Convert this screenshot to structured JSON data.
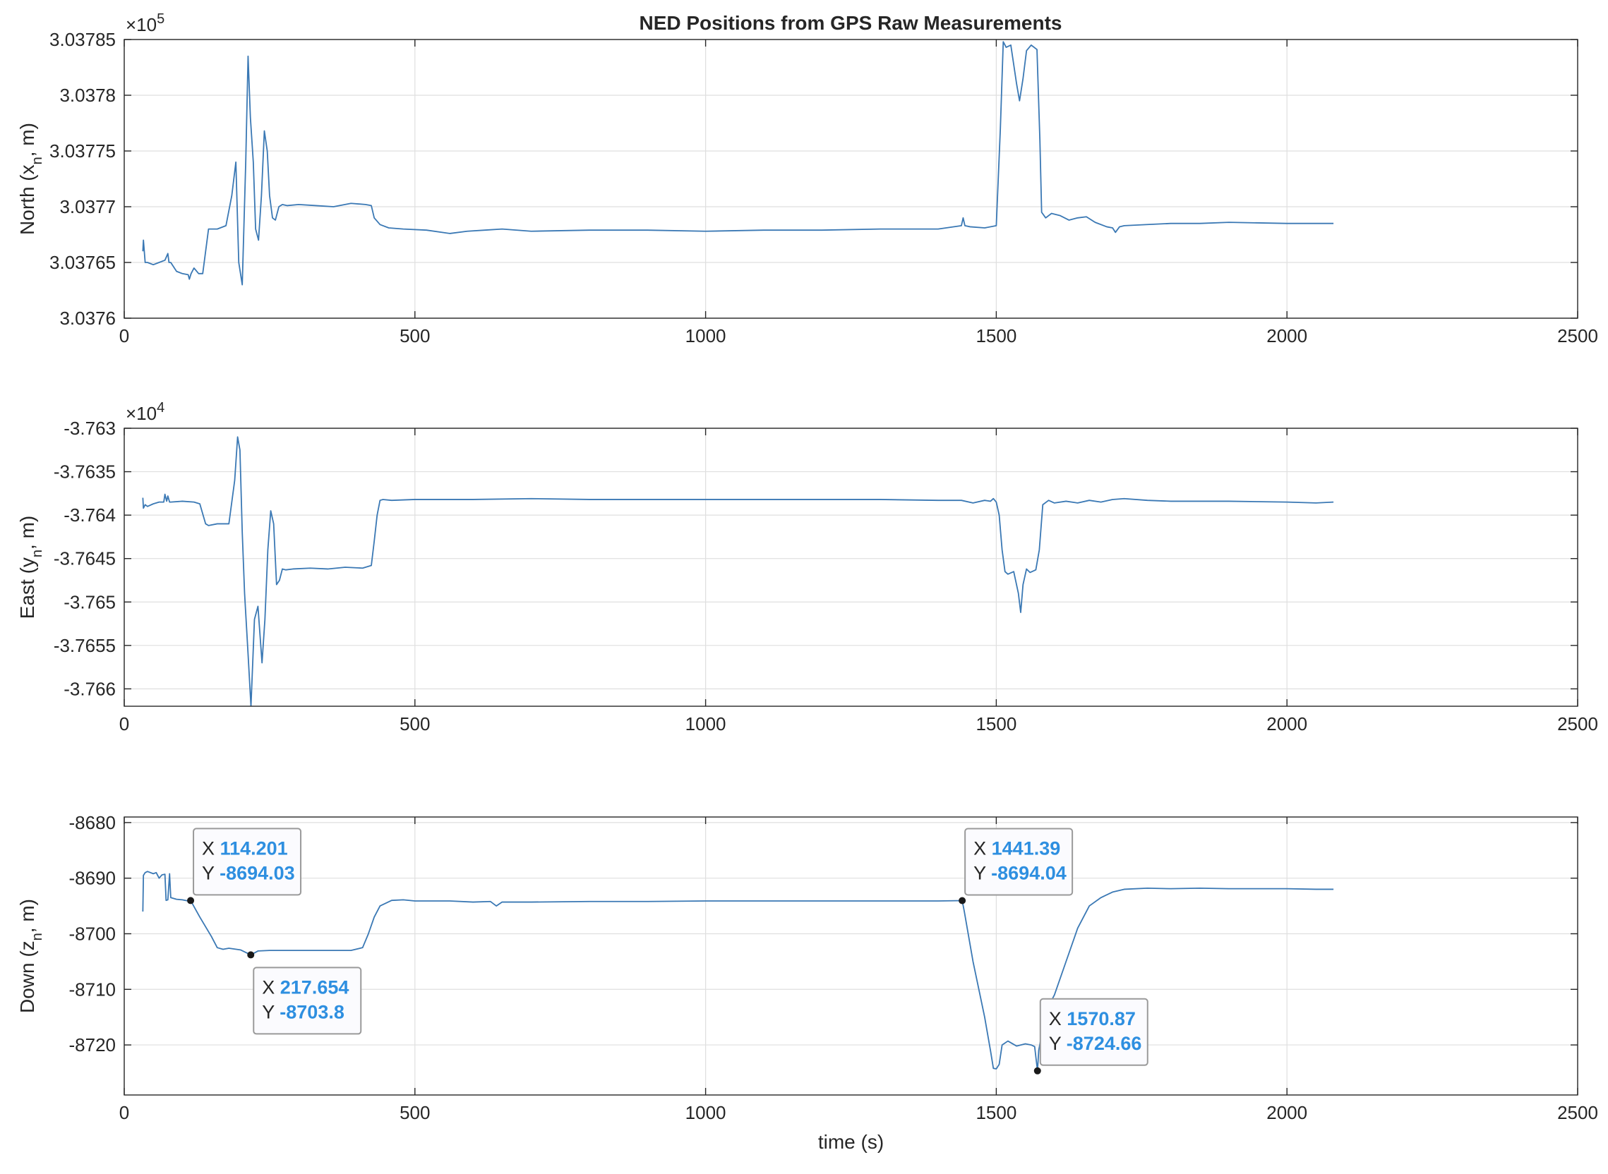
{
  "figure": {
    "title": "NED Positions from GPS Raw Measurements",
    "line_color": "#3A78B4",
    "tip_value_color": "#2E8FE0"
  },
  "chart_data": [
    {
      "type": "line",
      "name": "north",
      "ylabel": "North (x_n, m)",
      "xlabel": "",
      "exponent": "×10^5",
      "exponent_base": "×10",
      "exponent_power": "5",
      "xlim": [
        0,
        2500
      ],
      "ylim": [
        303760,
        303785
      ],
      "xticks": [
        0,
        500,
        1000,
        1500,
        2000,
        2500
      ],
      "yticks": [
        303760,
        303765,
        303770,
        303775,
        303780,
        303785
      ],
      "ytick_labels": [
        "3.0376",
        "3.03765",
        "3.0377",
        "3.03775",
        "3.0378",
        "3.03785"
      ],
      "grid": true,
      "x": [
        32,
        33,
        36,
        40,
        50,
        60,
        70,
        75,
        77,
        80,
        90,
        100,
        110,
        112,
        115,
        120,
        128,
        135,
        145,
        160,
        175,
        185,
        192,
        197,
        203,
        209,
        213,
        217,
        222,
        226,
        231,
        236,
        241,
        246,
        250,
        255,
        260,
        266,
        272,
        280,
        300,
        330,
        360,
        390,
        415,
        425,
        430,
        440,
        455,
        480,
        520,
        560,
        590,
        620,
        650,
        700,
        800,
        900,
        1000,
        1100,
        1200,
        1300,
        1400,
        1440,
        1443,
        1446,
        1455,
        1480,
        1500,
        1507,
        1512,
        1517,
        1525,
        1535,
        1540,
        1546,
        1552,
        1560,
        1570,
        1575,
        1578,
        1585,
        1595,
        1610,
        1625,
        1640,
        1655,
        1670,
        1690,
        1700,
        1705,
        1712,
        1720,
        1760,
        1800,
        1850,
        1900,
        2000,
        2050,
        2080
      ],
      "y": [
        303766,
        303767,
        303765,
        303765,
        303764.8,
        303765,
        303765.2,
        303765.8,
        303765,
        303765,
        303764.2,
        303764,
        303763.9,
        303763.5,
        303764,
        303764.5,
        303764,
        303764,
        303768,
        303768,
        303768.3,
        303771,
        303774,
        303765,
        303763,
        303774,
        303783.5,
        303778,
        303774,
        303768,
        303767,
        303771,
        303776.8,
        303775,
        303771,
        303769,
        303768.8,
        303770,
        303770.2,
        303770.1,
        303770.2,
        303770.1,
        303770,
        303770.3,
        303770.2,
        303770.1,
        303769,
        303768.4,
        303768.1,
        303768,
        303767.9,
        303767.6,
        303767.8,
        303767.9,
        303768,
        303767.8,
        303767.9,
        303767.9,
        303767.8,
        303767.9,
        303767.9,
        303768,
        303768,
        303768.3,
        303769,
        303768.3,
        303768.2,
        303768.1,
        303768.3,
        303777,
        303784.8,
        303784.3,
        303784.5,
        303781,
        303779.5,
        303781.5,
        303784,
        303784.5,
        303784.1,
        303776,
        303769.5,
        303769,
        303769.4,
        303769.2,
        303768.8,
        303769,
        303769.1,
        303768.6,
        303768.2,
        303768.1,
        303767.7,
        303768.2,
        303768.3,
        303768.4,
        303768.5,
        303768.5,
        303768.6,
        303768.5,
        303768.5,
        303768.5
      ]
    },
    {
      "type": "line",
      "name": "east",
      "ylabel": "East (y_n, m)",
      "xlabel": "",
      "exponent": "×10^4",
      "exponent_base": "×10",
      "exponent_power": "4",
      "xlim": [
        0,
        2500
      ],
      "ylim": [
        -37662,
        -37630
      ],
      "xticks": [
        0,
        500,
        1000,
        1500,
        2000,
        2500
      ],
      "yticks": [
        -37660,
        -37655,
        -37650,
        -37645,
        -37640,
        -37635,
        -37630
      ],
      "ytick_labels": [
        "-3.766",
        "-3.7655",
        "-3.765",
        "-3.7645",
        "-3.764",
        "-3.7635",
        "-3.763"
      ],
      "grid": true,
      "x": [
        32,
        33,
        36,
        40,
        50,
        60,
        68,
        70,
        73,
        75,
        78,
        80,
        100,
        120,
        130,
        140,
        145,
        160,
        180,
        190,
        195,
        199,
        203,
        207,
        213,
        218,
        224,
        230,
        237,
        242,
        247,
        252,
        257,
        262,
        267,
        272,
        278,
        290,
        320,
        350,
        380,
        410,
        425,
        430,
        435,
        440,
        445,
        460,
        500,
        600,
        700,
        800,
        900,
        1000,
        1100,
        1200,
        1300,
        1400,
        1440,
        1460,
        1480,
        1490,
        1495,
        1500,
        1505,
        1510,
        1515,
        1520,
        1530,
        1538,
        1542,
        1546,
        1552,
        1558,
        1568,
        1574,
        1580,
        1590,
        1600,
        1620,
        1640,
        1660,
        1680,
        1700,
        1720,
        1760,
        1800,
        1900,
        2000,
        2050,
        2080
      ],
      "y": [
        -37638,
        -37639.2,
        -37638.8,
        -37639,
        -37638.7,
        -37638.5,
        -37638.5,
        -37637.6,
        -37638.4,
        -37637.8,
        -37638.5,
        -37638.5,
        -37638.4,
        -37638.5,
        -37638.7,
        -37641,
        -37641.2,
        -37641,
        -37641,
        -37636,
        -37631,
        -37632.5,
        -37642,
        -37649,
        -37656,
        -37662,
        -37652,
        -37650.5,
        -37657,
        -37652,
        -37644,
        -37639.5,
        -37641,
        -37648,
        -37647.5,
        -37646.2,
        -37646.3,
        -37646.2,
        -37646.1,
        -37646.2,
        -37646,
        -37646.1,
        -37645.8,
        -37643,
        -37640,
        -37638.3,
        -37638.2,
        -37638.3,
        -37638.2,
        -37638.2,
        -37638.1,
        -37638.2,
        -37638.2,
        -37638.2,
        -37638.2,
        -37638.2,
        -37638.2,
        -37638.3,
        -37638.3,
        -37638.6,
        -37638.3,
        -37638.4,
        -37638.1,
        -37638.5,
        -37640,
        -37644,
        -37646.5,
        -37646.8,
        -37646.5,
        -37649,
        -37651.2,
        -37648,
        -37646.2,
        -37646.6,
        -37646.3,
        -37644,
        -37638.8,
        -37638.3,
        -37638.6,
        -37638.4,
        -37638.6,
        -37638.3,
        -37638.5,
        -37638.2,
        -37638.1,
        -37638.3,
        -37638.4,
        -37638.4,
        -37638.5,
        -37638.6,
        -37638.5
      ]
    },
    {
      "type": "line",
      "name": "down",
      "ylabel": "Down (z_n, m)",
      "xlabel": "time (s)",
      "exponent": "",
      "xlim": [
        0,
        2500
      ],
      "ylim": [
        -8729,
        -8679
      ],
      "xticks": [
        0,
        500,
        1000,
        1500,
        2000,
        2500
      ],
      "yticks": [
        -8720,
        -8710,
        -8700,
        -8690,
        -8680
      ],
      "ytick_labels": [
        "-8720",
        "-8710",
        "-8700",
        "-8690",
        "-8680"
      ],
      "grid": true,
      "x": [
        32,
        33,
        36,
        40,
        50,
        55,
        60,
        65,
        70,
        72,
        75,
        78,
        80,
        90,
        100,
        110,
        114.201,
        130,
        150,
        160,
        170,
        180,
        200,
        217.654,
        230,
        250,
        300,
        350,
        390,
        410,
        420,
        430,
        440,
        460,
        480,
        500,
        560,
        600,
        630,
        640,
        650,
        700,
        800,
        900,
        1000,
        1100,
        1200,
        1300,
        1400,
        1441.39,
        1445,
        1460,
        1480,
        1490,
        1495,
        1500,
        1505,
        1510,
        1520,
        1535,
        1550,
        1560,
        1566,
        1570.87,
        1573,
        1580,
        1590,
        1600,
        1620,
        1640,
        1660,
        1680,
        1690,
        1700,
        1720,
        1760,
        1800,
        1850,
        1900,
        2000,
        2050,
        2080
      ],
      "y": [
        -8696,
        -8689.5,
        -8689,
        -8688.8,
        -8689.2,
        -8689,
        -8690,
        -8689.4,
        -8689.3,
        -8694,
        -8693.9,
        -8689.2,
        -8693.5,
        -8693.8,
        -8693.9,
        -8694.1,
        -8694.03,
        -8697,
        -8700.5,
        -8702.5,
        -8702.8,
        -8702.6,
        -8702.9,
        -8703.8,
        -8703.1,
        -8703,
        -8703,
        -8703,
        -8703,
        -8702.5,
        -8700,
        -8697,
        -8695,
        -8694,
        -8693.9,
        -8694.1,
        -8694.1,
        -8694.3,
        -8694.2,
        -8695,
        -8694.3,
        -8694.3,
        -8694.2,
        -8694.2,
        -8694.1,
        -8694.1,
        -8694.1,
        -8694.1,
        -8694.1,
        -8694.04,
        -8696,
        -8705,
        -8715,
        -8721,
        -8724.2,
        -8724.3,
        -8723.5,
        -8720,
        -8719.3,
        -8720.2,
        -8719.8,
        -8720,
        -8720.3,
        -8724.66,
        -8721,
        -8717,
        -8713,
        -8711,
        -8705,
        -8699,
        -8695,
        -8693.5,
        -8693,
        -8692.5,
        -8692,
        -8691.8,
        -8691.9,
        -8691.8,
        -8691.9,
        -8691.9,
        -8692,
        -8692
      ],
      "datatips": [
        {
          "x": 114.201,
          "y": -8694.03,
          "x_text": "114.201",
          "y_text": "-8694.03",
          "side": "upper-right"
        },
        {
          "x": 217.654,
          "y": -8703.8,
          "x_text": "217.654",
          "y_text": "-8703.8",
          "side": "lower-right"
        },
        {
          "x": 1441.39,
          "y": -8694.04,
          "x_text": "1441.39",
          "y_text": "-8694.04",
          "side": "upper-right"
        },
        {
          "x": 1570.87,
          "y": -8724.66,
          "x_text": "1570.87",
          "y_text": "-8724.66",
          "side": "upper-right"
        }
      ]
    }
  ]
}
